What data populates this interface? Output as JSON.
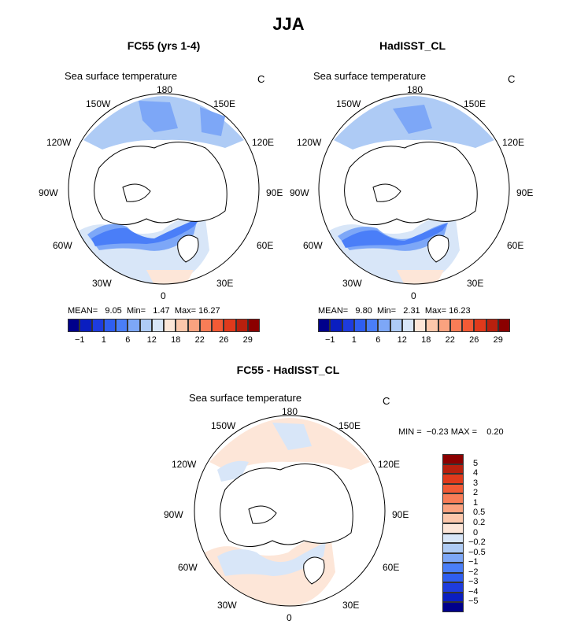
{
  "title": "JJA",
  "panels": [
    {
      "id": "fc55",
      "title": "FC55 (yrs 1-4)",
      "variable": "Sea surface temperature",
      "unit": "C",
      "mean_label": "MEAN=",
      "mean": "9.05",
      "min_label": "Min=",
      "min": "1.47",
      "max_label": "Max=",
      "max": "16.27"
    },
    {
      "id": "hadisst",
      "title": "HadISST_CL",
      "variable": "Sea surface temperature",
      "unit": "C",
      "mean_label": "MEAN=",
      "mean": "9.80",
      "min_label": "Min=",
      "min": "2.31",
      "max_label": "Max=",
      "max": "16.23"
    },
    {
      "id": "diff",
      "title": "FC55 - HadISST_CL",
      "variable": "Sea surface temperature",
      "unit": "C",
      "min_label": "MIN =",
      "min": "−0.23",
      "max_label": "MAX =",
      "max": "0.20"
    }
  ],
  "longitude_labels": {
    "top": "180",
    "upper_left": "150W",
    "upper_right": "150E",
    "mid_upper_left": "120W",
    "mid_upper_right": "120E",
    "left": "90W",
    "right": "90E",
    "mid_lower_left": "60W",
    "mid_lower_right": "60E",
    "lower_left": "30W",
    "lower_right": "30E",
    "bottom": "0"
  },
  "colorbar_absolute": {
    "labels": [
      "−1",
      "1",
      "6",
      "12",
      "18",
      "22",
      "26",
      "29"
    ],
    "colors": [
      "#00008b",
      "#0a1ec0",
      "#1e3cde",
      "#2f5ef0",
      "#4a7ef8",
      "#7da7f7",
      "#aecbf5",
      "#d8e6f8",
      "#fde6d8",
      "#fcc7ab",
      "#faa27f",
      "#f87d57",
      "#f25a35",
      "#e03a1c",
      "#b8200e",
      "#8b0000"
    ]
  },
  "colorbar_diff": {
    "labels": [
      "5",
      "4",
      "3",
      "2",
      "1",
      "0.5",
      "0.2",
      "0",
      "−0.2",
      "−0.5",
      "−1",
      "−2",
      "−3",
      "−4",
      "−5"
    ],
    "colors": [
      "#8b0000",
      "#b8200e",
      "#e03a1c",
      "#f25a35",
      "#f87d57",
      "#faa27f",
      "#fcc7ab",
      "#fde6d8",
      "#d8e6f8",
      "#aecbf5",
      "#7da7f7",
      "#4a7ef8",
      "#2f5ef0",
      "#1e3cde",
      "#0a1ec0",
      "#00008b"
    ]
  }
}
